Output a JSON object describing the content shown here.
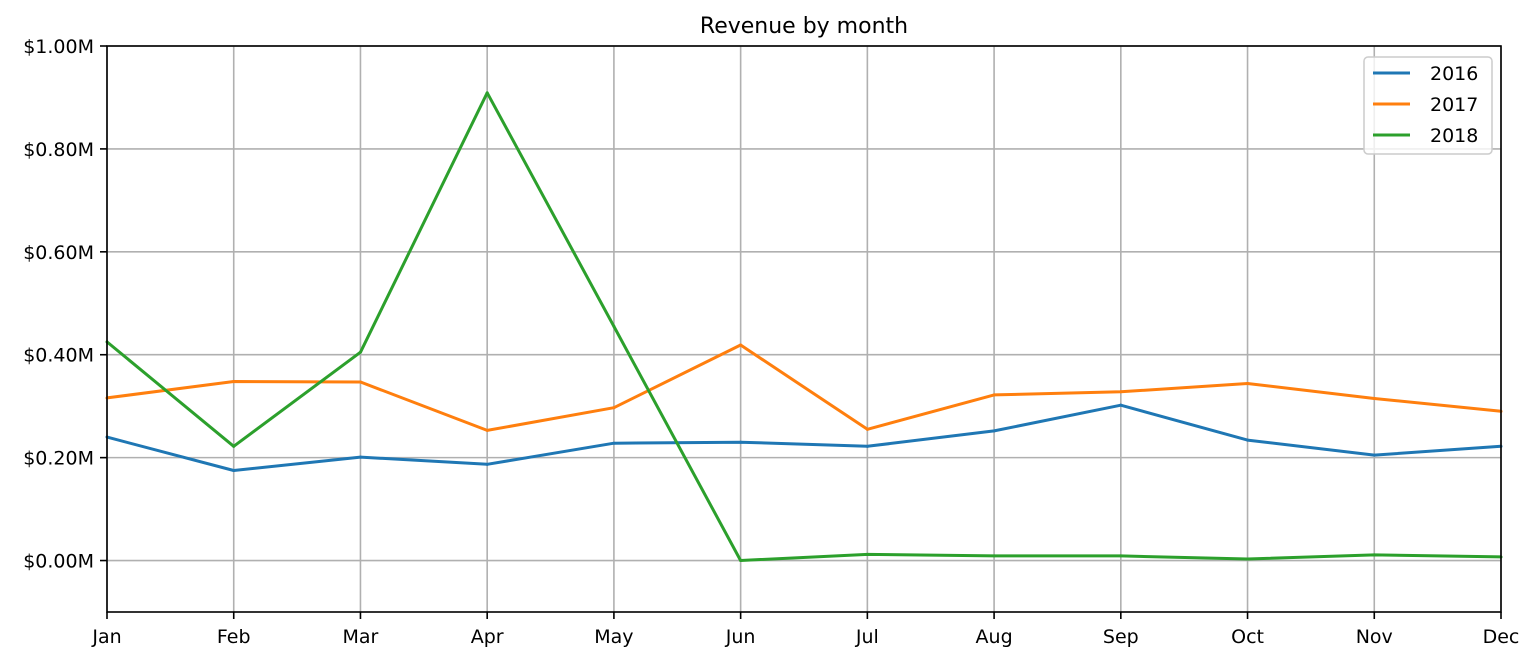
{
  "chart_data": {
    "type": "line",
    "title": "Revenue by month",
    "xlabel": "",
    "ylabel": "",
    "categories": [
      "Jan",
      "Feb",
      "Mar",
      "Apr",
      "May",
      "Jun",
      "Jul",
      "Aug",
      "Sep",
      "Oct",
      "Nov",
      "Dec"
    ],
    "ylim": [
      -0.1,
      1.0
    ],
    "yticks": [
      0.0,
      0.2,
      0.4,
      0.6,
      0.8,
      1.0
    ],
    "ytick_labels": [
      "$0.00M",
      "$0.20M",
      "$0.40M",
      "$0.60M",
      "$0.80M",
      "$1.00M"
    ],
    "y_unit": "millions of dollars",
    "grid": true,
    "legend_position": "top-right",
    "series": [
      {
        "name": "2016",
        "color": "#1f77b4",
        "values": [
          0.24,
          0.175,
          0.201,
          0.187,
          0.228,
          0.23,
          0.222,
          0.252,
          0.302,
          0.234,
          0.205,
          0.222
        ]
      },
      {
        "name": "2017",
        "color": "#ff7f0e",
        "values": [
          0.316,
          0.348,
          0.347,
          0.253,
          0.297,
          0.419,
          0.255,
          0.322,
          0.328,
          0.344,
          0.315,
          0.29
        ]
      },
      {
        "name": "2018",
        "color": "#2ca02c",
        "values": [
          0.425,
          0.222,
          0.405,
          0.909,
          0.455,
          0.0,
          0.012,
          0.009,
          0.009,
          0.003,
          0.011,
          0.007
        ]
      }
    ]
  }
}
